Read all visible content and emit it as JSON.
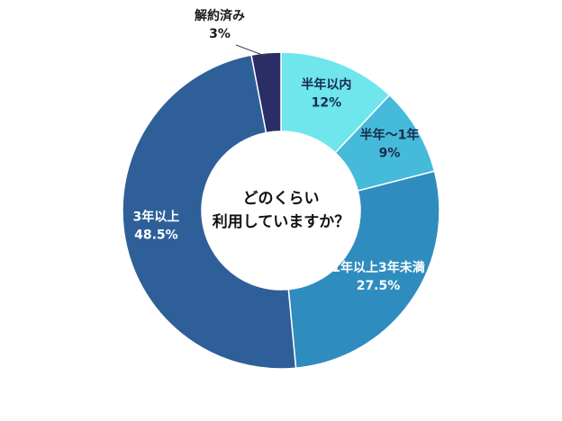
{
  "chart_data": {
    "type": "pie",
    "variant": "donut",
    "center_label": [
      "どのくらい",
      "利用していますか？"
    ],
    "slices": [
      {
        "name": "半年以内",
        "value": 12,
        "value_label": "12%",
        "color": "#6ee6ec"
      },
      {
        "name": "半年〜1年",
        "value": 9,
        "value_label": "9%",
        "color": "#45bada"
      },
      {
        "name": "1年以上3年未満",
        "value": 27.5,
        "value_label": "27.5%",
        "color": "#2f8cbf"
      },
      {
        "name": "3年以上",
        "value": 48.5,
        "value_label": "48.5%",
        "color": "#2e5f98"
      },
      {
        "name": "解約済み",
        "value": 3,
        "value_label": "3%",
        "color": "#2b2d67"
      }
    ],
    "start": "top",
    "direction": "clockwise",
    "legend": "none"
  }
}
